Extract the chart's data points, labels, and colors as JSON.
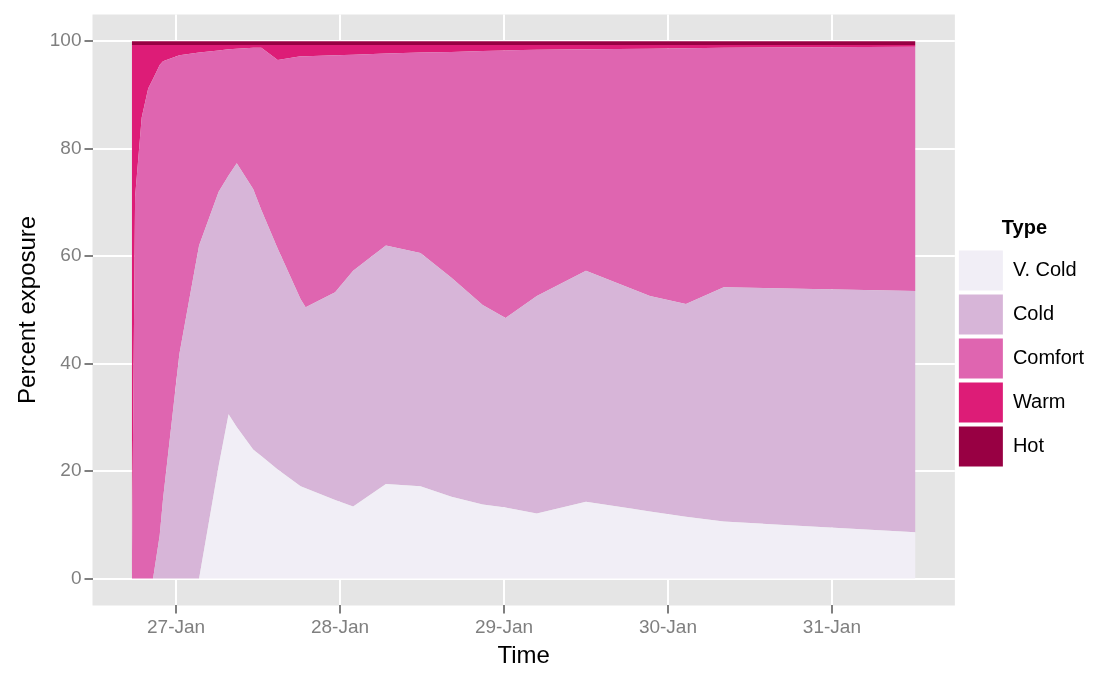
{
  "chart_data": {
    "type": "area",
    "stacked": true,
    "xlabel": "Time",
    "ylabel": "Percent exposure",
    "legend_title": "Type",
    "legend": "right",
    "grid": true,
    "x": [
      "--01-26T17:31",
      "--01-26T18:00",
      "--01-26T18:58",
      "--01-26T19:55",
      "--01-26T20:38",
      "--01-26T21:36",
      "--01-26T22:05",
      "--01-27T00:29",
      "--01-27T03:22",
      "--01-27T06:14",
      "--01-27T07:41",
      "--01-27T08:53",
      "--01-27T11:17",
      "--01-27T12:29",
      "--01-27T14:53",
      "--01-27T18:14",
      "--01-27T18:58",
      "--01-27T23:17",
      "--01-28T01:55",
      "--01-28T06:43",
      "--01-28T11:46",
      "--01-28T16:19",
      "--01-28T20:53",
      "--01-29T00:14",
      "--01-29T04:48",
      "--01-29T12:00",
      "--01-29T21:22",
      "--01-30T02:38",
      "--01-30T08:10",
      "--01-31T12:14"
    ],
    "xlim": [
      "--01-26T11:46",
      "--01-31T18:00"
    ],
    "xticks": [
      {
        "value": "--01-27",
        "label": "27-Jan"
      },
      {
        "value": "--01-28",
        "label": "28-Jan"
      },
      {
        "value": "--01-29",
        "label": "29-Jan"
      },
      {
        "value": "--01-30",
        "label": "30-Jan"
      },
      {
        "value": "--01-31",
        "label": "31-Jan"
      }
    ],
    "ylim": [
      -5,
      105
    ],
    "yticks": [
      0,
      20,
      40,
      60,
      80,
      100
    ],
    "series": [
      {
        "name": "V. Cold",
        "color": "#f1eef6",
        "values": [
          0,
          0,
          0,
          0,
          0,
          0,
          0,
          0,
          0,
          21,
          30.6,
          28.2,
          24,
          22.8,
          20.3,
          17.2,
          16.8,
          14.6,
          13.4,
          17.6,
          17.2,
          15.2,
          13.8,
          13.2,
          12.1,
          14.3,
          12.5,
          11.5,
          10.6,
          8.6
        ]
      },
      {
        "name": "Cold",
        "color": "#d7b5d8",
        "values": [
          0,
          0,
          0,
          0,
          0,
          8,
          14.7,
          41.8,
          62,
          51,
          44.4,
          49.1,
          48.5,
          45.8,
          41.1,
          34.8,
          33.7,
          38.7,
          43.9,
          44.4,
          43.4,
          40.8,
          37.1,
          35.3,
          40.5,
          43,
          40.1,
          39.6,
          43.6,
          44.9
        ]
      },
      {
        "name": "Comfort",
        "color": "#df65b0",
        "values": [
          0,
          71,
          85.8,
          91.2,
          93,
          87.6,
          81.6,
          55.6,
          35.9,
          26.3,
          23.5,
          21.3,
          26.3,
          30.2,
          35.1,
          45.2,
          46.7,
          44.1,
          40.2,
          35.7,
          37.3,
          42,
          47.3,
          49.8,
          45.8,
          41.2,
          46,
          47.6,
          44.6,
          45.5
        ]
      },
      {
        "name": "Warm",
        "color": "#dd1c77",
        "values": [
          99.3,
          28.3,
          13.5,
          8.1,
          6.3,
          3.7,
          3,
          1.9,
          1.4,
          1,
          0.8,
          0.7,
          0.5,
          0.5,
          2.8,
          2.1,
          2.1,
          1.9,
          1.8,
          1.6,
          1.4,
          1.3,
          1.1,
          1,
          0.9,
          0.8,
          0.7,
          0.6,
          0.5,
          0.3
        ]
      },
      {
        "name": "Hot",
        "color": "#980043",
        "values": [
          0.7,
          0.7,
          0.7,
          0.7,
          0.7,
          0.7,
          0.7,
          0.7,
          0.7,
          0.7,
          0.7,
          0.7,
          0.7,
          0.7,
          0.7,
          0.7,
          0.7,
          0.7,
          0.7,
          0.7,
          0.7,
          0.7,
          0.7,
          0.7,
          0.7,
          0.7,
          0.7,
          0.7,
          0.7,
          0.7
        ]
      }
    ]
  }
}
